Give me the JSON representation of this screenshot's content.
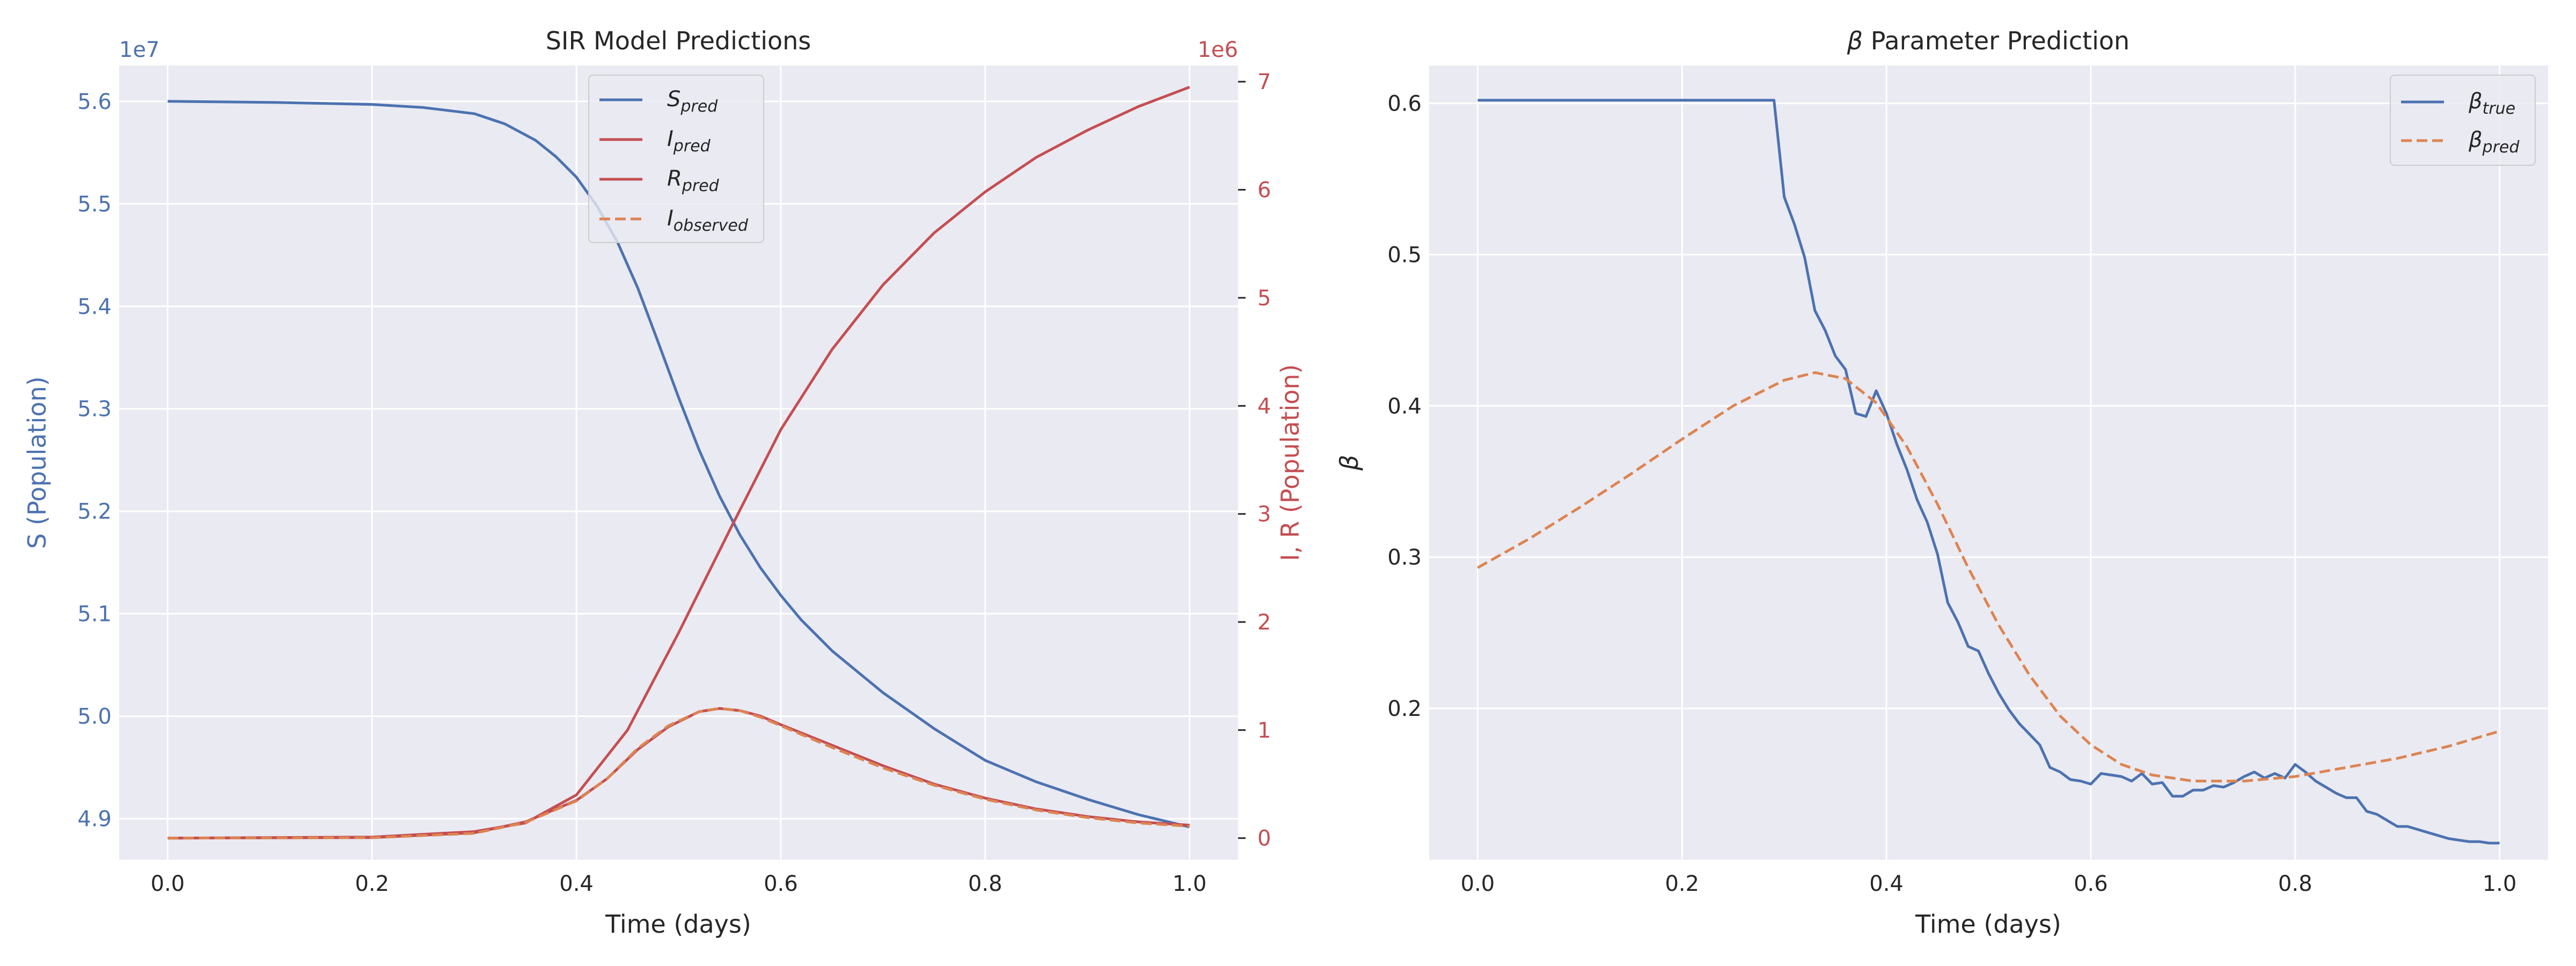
{
  "colors": {
    "s_blue": "#4c72b0",
    "ir_red": "#c44e52",
    "observed_orange": "#dd8452",
    "beta_true_blue": "#4c72b0",
    "beta_pred_orange": "#dd8452",
    "panel_bg": "#eaeaf2",
    "grid": "#ffffff"
  },
  "chart_data": [
    {
      "type": "line",
      "title": "SIR Model Predictions",
      "xlabel": "Time (days)",
      "ylabel_left": "S (Population)",
      "ylabel_right": "I, R (Population)",
      "left_offset_label": "1e7",
      "right_offset_label": "1e6",
      "xlim": [
        -0.0475,
        1.0475
      ],
      "ylim_left": [
        4.86,
        5.635
      ],
      "ylim_right": [
        -0.2,
        7.15
      ],
      "x_ticks": [
        0.0,
        0.2,
        0.4,
        0.6,
        0.8,
        1.0
      ],
      "x_tick_labels": [
        "0.0",
        "0.2",
        "0.4",
        "0.6",
        "0.8",
        "1.0"
      ],
      "yleft_ticks": [
        4.9,
        5.0,
        5.1,
        5.2,
        5.3,
        5.4,
        5.5,
        5.6
      ],
      "yleft_tick_labels": [
        "4.9",
        "5.0",
        "5.1",
        "5.2",
        "5.3",
        "5.4",
        "5.5",
        "5.6"
      ],
      "yright_ticks": [
        0,
        1,
        2,
        3,
        4,
        5,
        6,
        7
      ],
      "yright_tick_labels": [
        "0",
        "1",
        "2",
        "3",
        "4",
        "5",
        "6",
        "7"
      ],
      "grid": true,
      "legend_location": "upper center",
      "series": [
        {
          "name": "S_pred",
          "legend_main": "S",
          "legend_sub": "pred",
          "axis": "left",
          "style": "solid",
          "color": "#4c72b0",
          "x": [
            0.0,
            0.1,
            0.2,
            0.25,
            0.3,
            0.33,
            0.36,
            0.38,
            0.4,
            0.42,
            0.44,
            0.46,
            0.48,
            0.5,
            0.52,
            0.54,
            0.56,
            0.58,
            0.6,
            0.62,
            0.65,
            0.7,
            0.75,
            0.8,
            0.85,
            0.9,
            0.95,
            1.0
          ],
          "y": [
            5.6,
            5.599,
            5.597,
            5.594,
            5.588,
            5.578,
            5.562,
            5.546,
            5.526,
            5.498,
            5.463,
            5.418,
            5.365,
            5.311,
            5.26,
            5.215,
            5.177,
            5.145,
            5.118,
            5.094,
            5.064,
            5.023,
            4.988,
            4.957,
            4.936,
            4.919,
            4.904,
            4.892
          ]
        },
        {
          "name": "I_pred",
          "legend_main": "I",
          "legend_sub": "pred",
          "axis": "right",
          "style": "solid",
          "color": "#c44e52",
          "x": [
            0.0,
            0.2,
            0.3,
            0.35,
            0.4,
            0.43,
            0.46,
            0.49,
            0.52,
            0.54,
            0.56,
            0.58,
            0.6,
            0.65,
            0.7,
            0.75,
            0.8,
            0.85,
            0.9,
            0.95,
            1.0
          ],
          "y": [
            0.0,
            0.005,
            0.05,
            0.15,
            0.35,
            0.55,
            0.82,
            1.03,
            1.17,
            1.2,
            1.18,
            1.13,
            1.05,
            0.86,
            0.67,
            0.5,
            0.37,
            0.27,
            0.2,
            0.15,
            0.12
          ]
        },
        {
          "name": "R_pred",
          "legend_main": "R",
          "legend_sub": "pred",
          "axis": "right",
          "style": "solid",
          "color": "#c44e52",
          "x": [
            0.0,
            0.2,
            0.3,
            0.35,
            0.4,
            0.45,
            0.5,
            0.55,
            0.6,
            0.65,
            0.7,
            0.75,
            0.8,
            0.85,
            0.9,
            0.95,
            1.0
          ],
          "y": [
            0.0,
            0.01,
            0.06,
            0.14,
            0.4,
            1.0,
            1.9,
            2.85,
            3.78,
            4.52,
            5.12,
            5.6,
            5.98,
            6.3,
            6.55,
            6.77,
            6.95
          ]
        },
        {
          "name": "I_observed",
          "legend_main": "I",
          "legend_sub": "observed",
          "axis": "right",
          "style": "dashed",
          "color": "#dd8452",
          "x": [
            0.0,
            0.2,
            0.3,
            0.35,
            0.4,
            0.43,
            0.46,
            0.49,
            0.52,
            0.54,
            0.56,
            0.58,
            0.6,
            0.65,
            0.7,
            0.75,
            0.8,
            0.85,
            0.9,
            0.95,
            1.0
          ],
          "y": [
            0.0,
            0.004,
            0.045,
            0.145,
            0.345,
            0.55,
            0.83,
            1.04,
            1.17,
            1.2,
            1.18,
            1.12,
            1.04,
            0.84,
            0.65,
            0.49,
            0.36,
            0.26,
            0.19,
            0.14,
            0.11
          ]
        }
      ]
    },
    {
      "type": "line",
      "title_symbol": "β",
      "title_text": "Parameter Prediction",
      "xlabel": "Time (days)",
      "ylabel": "β",
      "xlim": [
        -0.0475,
        1.0475
      ],
      "ylim": [
        0.1,
        0.625
      ],
      "x_ticks": [
        0.0,
        0.2,
        0.4,
        0.6,
        0.8,
        1.0
      ],
      "x_tick_labels": [
        "0.0",
        "0.2",
        "0.4",
        "0.6",
        "0.8",
        "1.0"
      ],
      "y_ticks": [
        0.2,
        0.3,
        0.4,
        0.5,
        0.6
      ],
      "y_tick_labels": [
        "0.2",
        "0.3",
        "0.4",
        "0.5",
        "0.6"
      ],
      "grid": true,
      "legend_location": "upper right",
      "series": [
        {
          "name": "β_true",
          "legend_main": "β",
          "legend_sub": "true",
          "style": "solid",
          "color": "#4c72b0",
          "x": [
            0.0,
            0.29,
            0.3,
            0.31,
            0.32,
            0.33,
            0.34,
            0.35,
            0.36,
            0.37,
            0.38,
            0.39,
            0.4,
            0.41,
            0.42,
            0.43,
            0.44,
            0.45,
            0.46,
            0.47,
            0.48,
            0.49,
            0.5,
            0.51,
            0.52,
            0.53,
            0.54,
            0.55,
            0.56,
            0.57,
            0.58,
            0.59,
            0.6,
            0.61,
            0.62,
            0.63,
            0.64,
            0.65,
            0.66,
            0.67,
            0.68,
            0.69,
            0.7,
            0.71,
            0.72,
            0.73,
            0.74,
            0.75,
            0.76,
            0.77,
            0.78,
            0.79,
            0.8,
            0.81,
            0.82,
            0.83,
            0.84,
            0.85,
            0.86,
            0.87,
            0.88,
            0.89,
            0.9,
            0.91,
            0.92,
            0.93,
            0.94,
            0.95,
            0.96,
            0.97,
            0.98,
            0.99,
            1.0
          ],
          "y": [
            0.602,
            0.602,
            0.538,
            0.52,
            0.498,
            0.463,
            0.45,
            0.433,
            0.424,
            0.395,
            0.393,
            0.41,
            0.395,
            0.375,
            0.358,
            0.338,
            0.323,
            0.302,
            0.27,
            0.257,
            0.241,
            0.238,
            0.223,
            0.21,
            0.199,
            0.19,
            0.183,
            0.176,
            0.161,
            0.158,
            0.153,
            0.152,
            0.15,
            0.157,
            0.156,
            0.155,
            0.152,
            0.157,
            0.15,
            0.151,
            0.142,
            0.142,
            0.146,
            0.146,
            0.149,
            0.148,
            0.151,
            0.155,
            0.158,
            0.154,
            0.157,
            0.154,
            0.163,
            0.158,
            0.152,
            0.148,
            0.144,
            0.141,
            0.141,
            0.132,
            0.13,
            0.126,
            0.122,
            0.122,
            0.12,
            0.118,
            0.116,
            0.114,
            0.113,
            0.112,
            0.112,
            0.111,
            0.111
          ]
        },
        {
          "name": "β_pred",
          "legend_main": "β",
          "legend_sub": "pred",
          "style": "dashed",
          "color": "#dd8452",
          "x": [
            0.0,
            0.05,
            0.1,
            0.15,
            0.2,
            0.25,
            0.3,
            0.33,
            0.36,
            0.39,
            0.42,
            0.45,
            0.48,
            0.51,
            0.54,
            0.57,
            0.6,
            0.63,
            0.66,
            0.7,
            0.75,
            0.8,
            0.85,
            0.9,
            0.95,
            1.0
          ],
          "y": [
            0.293,
            0.312,
            0.333,
            0.355,
            0.378,
            0.4,
            0.417,
            0.422,
            0.418,
            0.402,
            0.373,
            0.335,
            0.293,
            0.255,
            0.222,
            0.195,
            0.176,
            0.163,
            0.156,
            0.152,
            0.152,
            0.155,
            0.161,
            0.167,
            0.175,
            0.185
          ]
        }
      ]
    }
  ]
}
